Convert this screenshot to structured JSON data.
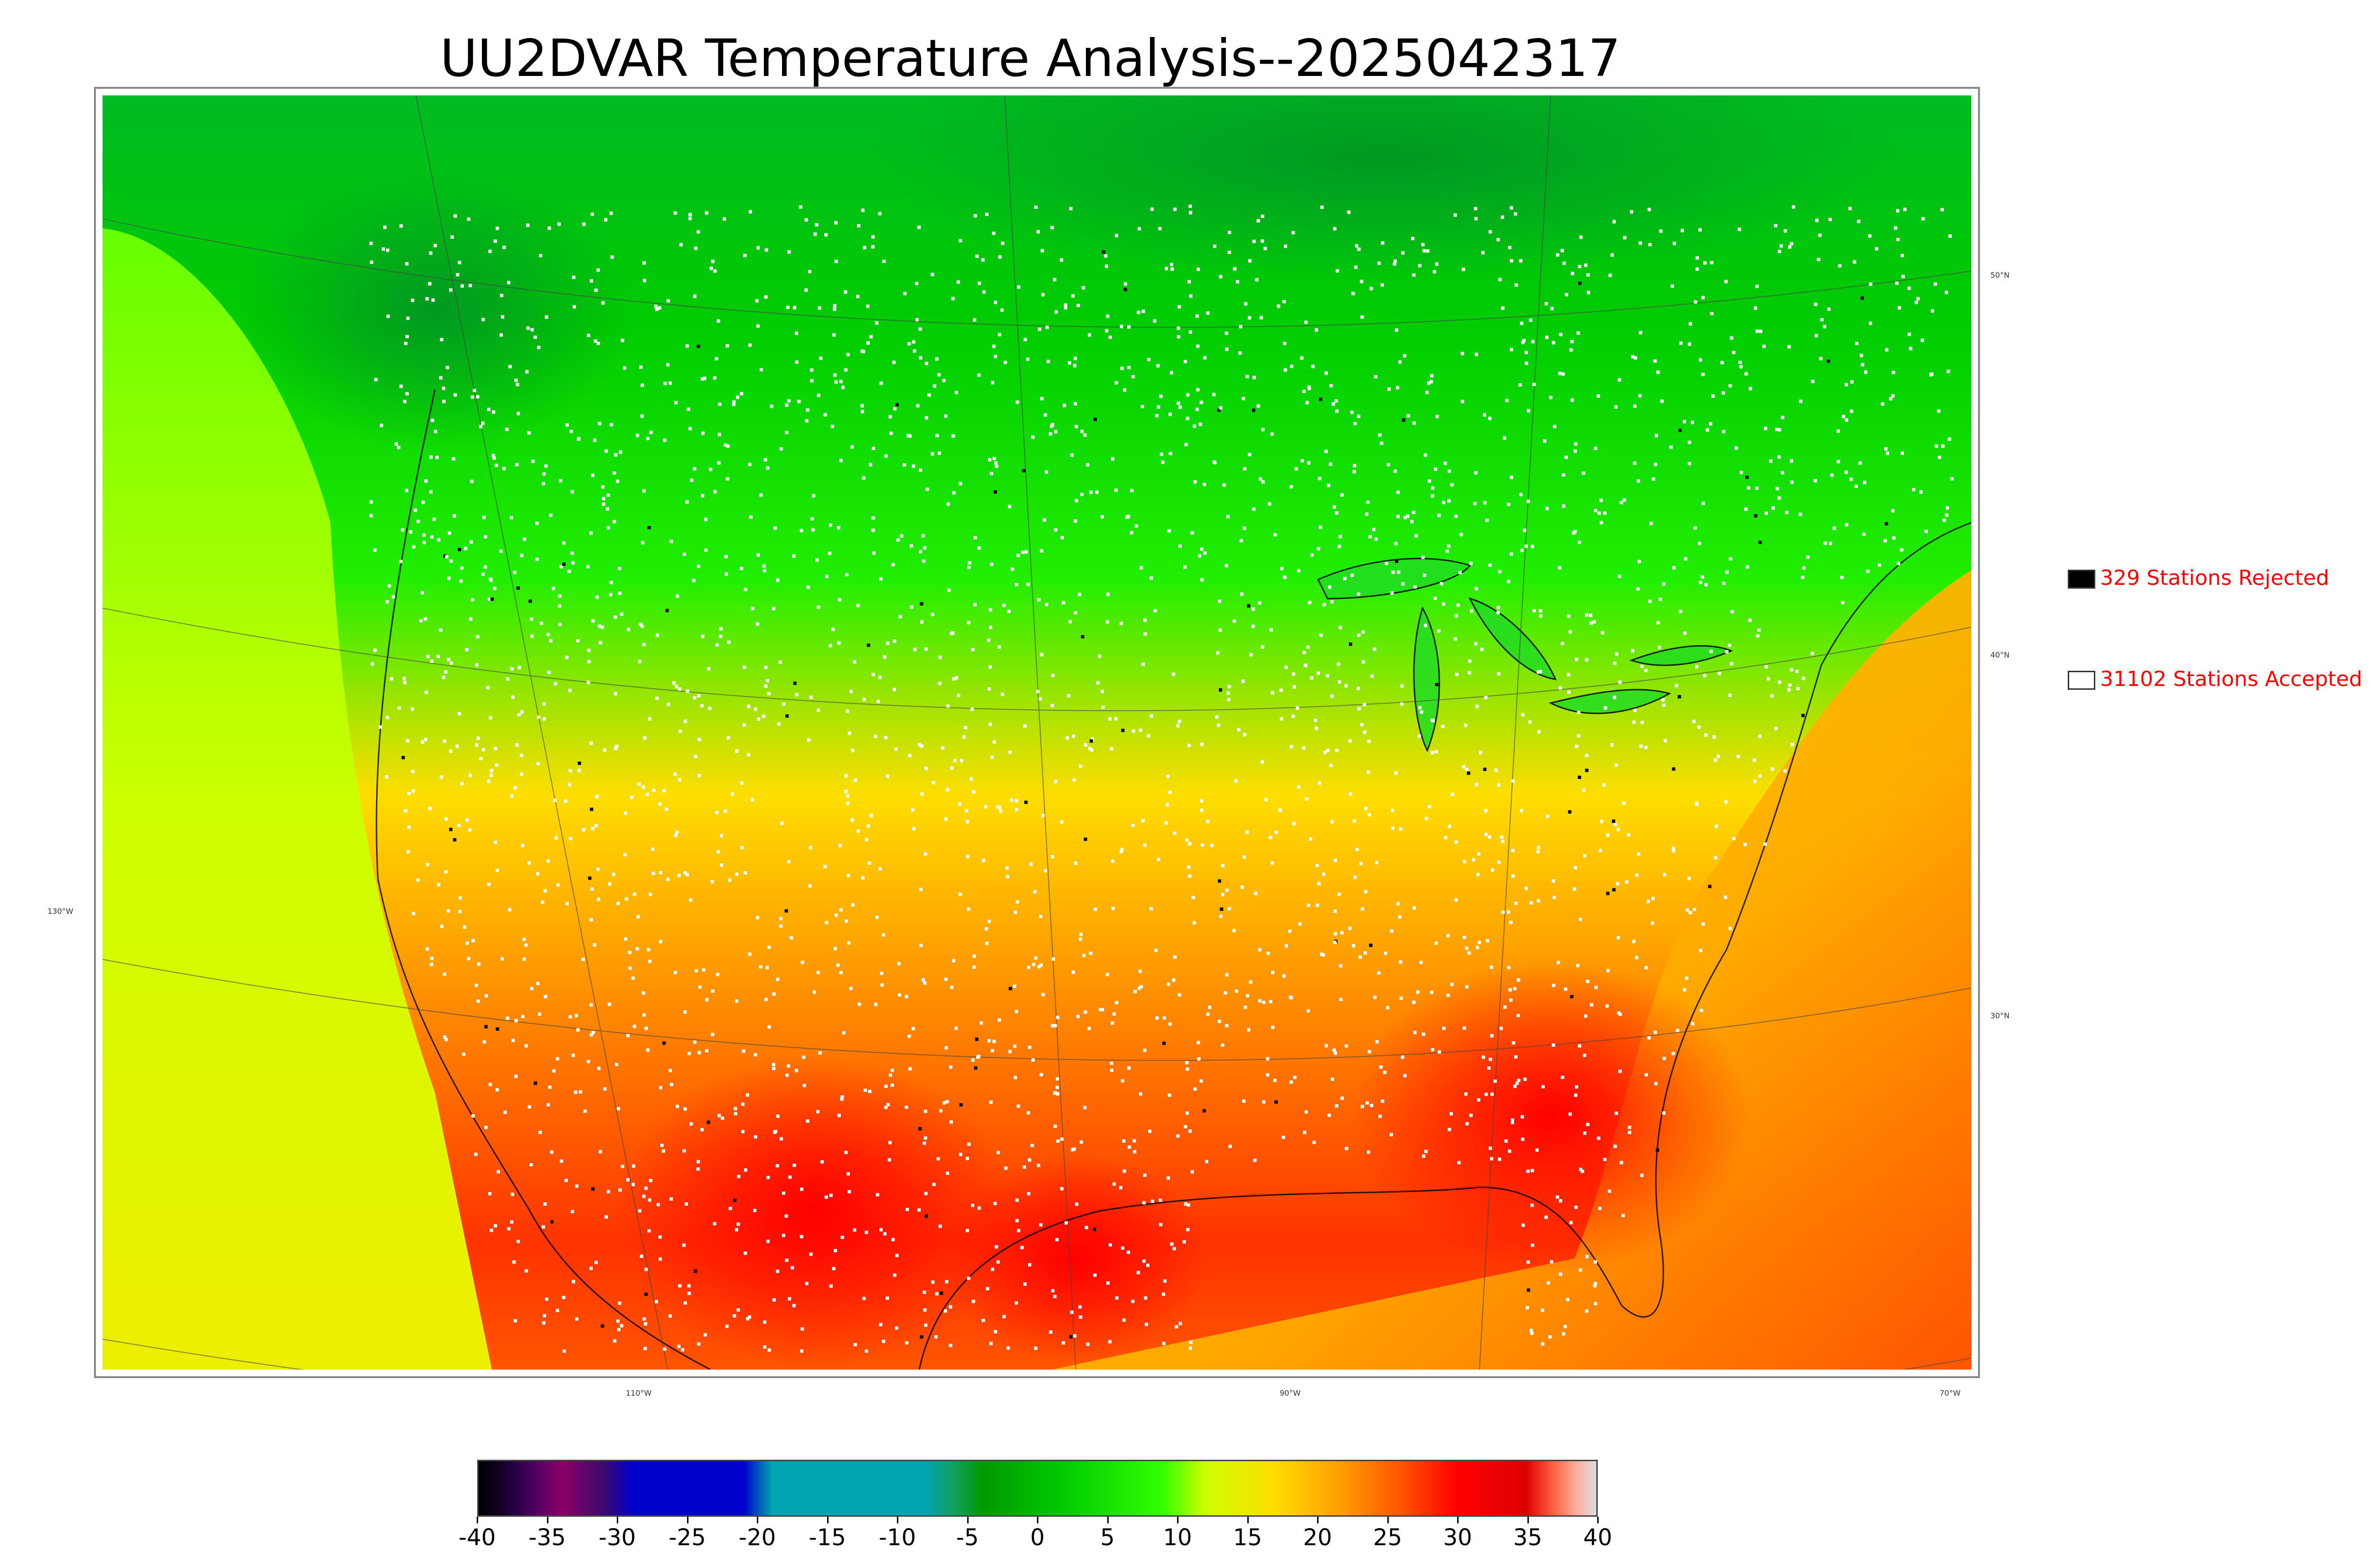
{
  "title": "UU2DVAR Temperature Analysis--2025042317",
  "legend": {
    "rejected": {
      "label": "329 Stations Rejected",
      "swatch_color": "#000000",
      "text_color": "#ff0000"
    },
    "accepted": {
      "label": "31102 Stations Accepted",
      "swatch_color": "#ffffff",
      "text_color": "#ff0000"
    }
  },
  "graticule": {
    "latitude_labels": [
      "50°N",
      "40°N",
      "30°N"
    ],
    "longitude_labels": [
      "130°W",
      "110°W",
      "90°W",
      "70°W"
    ]
  },
  "colorbar": {
    "tick_labels": [
      "-40",
      "-35",
      "-30",
      "-25",
      "-20",
      "-15",
      "-10",
      "-5",
      "0",
      "5",
      "10",
      "15",
      "20",
      "25",
      "30",
      "35",
      "40"
    ],
    "range": [
      -40,
      40
    ],
    "color_stops": [
      {
        "value": -40,
        "color": "#000000"
      },
      {
        "value": -38,
        "color": "#1a0033"
      },
      {
        "value": -36,
        "color": "#4b0060"
      },
      {
        "value": -34,
        "color": "#8b0066"
      },
      {
        "value": -31,
        "color": "#3a0a6e"
      },
      {
        "value": -29,
        "color": "#0000cc"
      },
      {
        "value": -21,
        "color": "#0000cc"
      },
      {
        "value": -19,
        "color": "#00a5b0"
      },
      {
        "value": -8,
        "color": "#00a5b0"
      },
      {
        "value": -6,
        "color": "#12a060"
      },
      {
        "value": -4,
        "color": "#009900"
      },
      {
        "value": 2,
        "color": "#00cc00"
      },
      {
        "value": 9,
        "color": "#33ff00"
      },
      {
        "value": 12,
        "color": "#ccff00"
      },
      {
        "value": 17,
        "color": "#ffdd00"
      },
      {
        "value": 22,
        "color": "#ff9900"
      },
      {
        "value": 26,
        "color": "#ff5500"
      },
      {
        "value": 30,
        "color": "#ff0000"
      },
      {
        "value": 35,
        "color": "#dd0000"
      },
      {
        "value": 37,
        "color": "#ff6644"
      },
      {
        "value": 38.5,
        "color": "#ffaa99"
      },
      {
        "value": 40,
        "color": "#dddddd"
      }
    ]
  },
  "map_colors": {
    "cold_north": "#00aa22",
    "mid": "#33ee00",
    "warm": "#ffcc00",
    "hot": "#ff1a00",
    "ocean_pacific": "#ddee00",
    "ocean_atlantic": "#ffaa00",
    "accepted_station": "#ffffff",
    "rejected_station": "#000000"
  }
}
